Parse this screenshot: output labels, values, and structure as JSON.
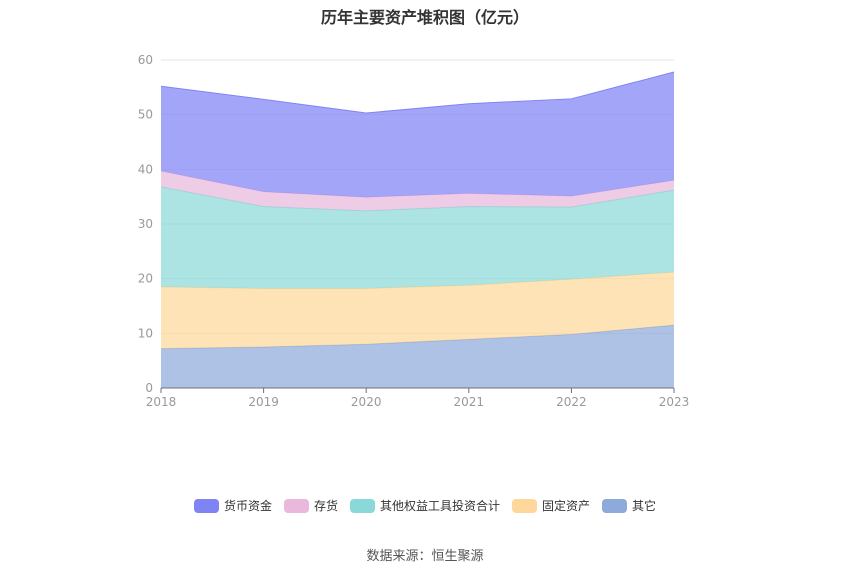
{
  "chart_data": {
    "type": "area",
    "stacked": true,
    "title": "历年主要资产堆积图（亿元）",
    "x": [
      "2018",
      "2019",
      "2020",
      "2021",
      "2022",
      "2023"
    ],
    "ylim": [
      0,
      60
    ],
    "yticks": [
      0,
      10,
      20,
      30,
      40,
      50,
      60
    ],
    "grid": true,
    "legend_position": "bottom",
    "series": [
      {
        "name": "其它",
        "color": "#8eaadb",
        "values": [
          7.2,
          7.5,
          8.0,
          8.9,
          9.8,
          11.5
        ]
      },
      {
        "name": "固定资产",
        "color": "#fdd89a",
        "values": [
          11.3,
          10.7,
          10.2,
          9.9,
          10.1,
          9.7
        ]
      },
      {
        "name": "其他权益工具投资合计",
        "color": "#8ad9d8",
        "values": [
          18.3,
          15.0,
          14.2,
          14.4,
          13.2,
          15.0
        ]
      },
      {
        "name": "存货",
        "color": "#e9b8dc",
        "values": [
          2.9,
          2.7,
          2.5,
          2.4,
          2.0,
          1.8
        ]
      },
      {
        "name": "货币资金",
        "color": "#7f84f5",
        "values": [
          15.5,
          16.9,
          15.4,
          16.4,
          17.8,
          19.8
        ]
      }
    ]
  },
  "source": "数据来源：恒生聚源"
}
